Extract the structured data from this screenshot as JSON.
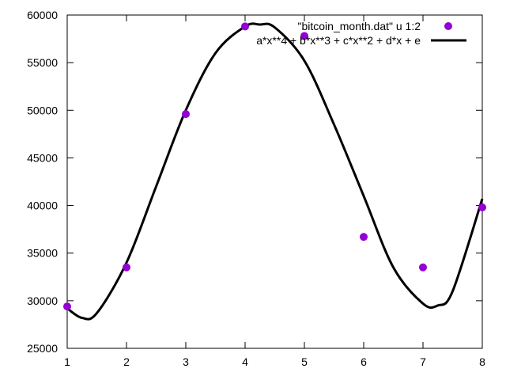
{
  "chart_data": {
    "type": "scatter",
    "title": "",
    "xlabel": "",
    "ylabel": "",
    "xlim": [
      1,
      8
    ],
    "ylim": [
      25000,
      60000
    ],
    "x_ticks": [
      1,
      2,
      3,
      4,
      5,
      6,
      7,
      8
    ],
    "y_ticks": [
      25000,
      30000,
      35000,
      40000,
      45000,
      50000,
      55000,
      60000
    ],
    "grid": false,
    "legend_position": "top-right",
    "series": [
      {
        "name": "\"bitcoin_month.dat\" u 1:2",
        "kind": "points",
        "color": "#9400d3",
        "x": [
          1,
          2,
          3,
          4,
          5,
          6,
          7,
          8
        ],
        "y": [
          29400,
          33500,
          49600,
          58800,
          57800,
          36700,
          33500,
          39800
        ]
      },
      {
        "name": "a*x**4 + b*x**3 + c*x**2 + d*x + e",
        "kind": "line",
        "color": "#000000",
        "x": [
          1,
          1.25,
          1.5,
          2,
          2.5,
          3,
          3.5,
          4,
          4.25,
          4.5,
          5,
          5.5,
          6,
          6.5,
          7,
          7.25,
          7.5,
          8
        ],
        "y": [
          29200,
          28200,
          28700,
          34000,
          42000,
          50000,
          56000,
          58800,
          59000,
          58700,
          55200,
          48500,
          41000,
          33500,
          29700,
          29500,
          31000,
          40700
        ]
      }
    ]
  }
}
